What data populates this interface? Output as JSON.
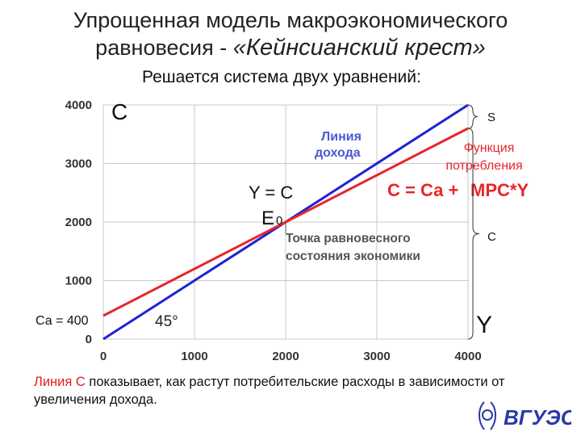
{
  "slide": {
    "title_line1": "Упрощенная модель макроэкономического",
    "title_line2_prefix": "равновесия - ",
    "title_line2_italic": "«Кейнсианский крест»",
    "subtitle": "Решается система двух уравнений:",
    "note_highlight": "Линия С",
    "note_text": " показывает, как растут потребительские расходы в зависимости от увеличения дохода.",
    "logo_text": "ВГУЭС"
  },
  "chart_data": {
    "type": "line",
    "xlim": [
      0,
      4000
    ],
    "ylim": [
      0,
      4000
    ],
    "x_ticks": [
      "0",
      "1000",
      "2000",
      "3000",
      "4000"
    ],
    "y_ticks": [
      "0",
      "1000",
      "2000",
      "3000",
      "4000"
    ],
    "grid": true,
    "y_axis_title": "С",
    "x_axis_title": "Y",
    "series": [
      {
        "name": "Линия дохода",
        "color": "#1f22d6",
        "x": [
          0,
          4000
        ],
        "y": [
          0,
          4000
        ]
      },
      {
        "name": "Функция потребления",
        "color": "#e8262b",
        "x": [
          0,
          4000
        ],
        "y": [
          400,
          3600
        ]
      }
    ],
    "annotations": {
      "income_line_label_1": "Линия",
      "income_line_label_2": "дохода",
      "consumption_label_1": "Функция",
      "consumption_label_2": "потребления",
      "formula_left": "С = Са + ",
      "formula_right": "MPC*Y",
      "y_eq_c": "Y = C",
      "e0": "Е",
      "e0_sub": "0",
      "equilibrium_1": "Точка равновесного",
      "equilibrium_2": "состояния экономики",
      "ca_label": "Са = 400",
      "angle": "45°",
      "bracket_s": "S",
      "bracket_c": "С"
    }
  }
}
